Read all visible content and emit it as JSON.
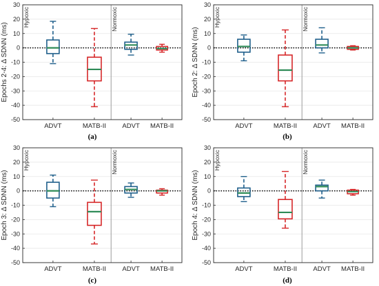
{
  "colors": {
    "advt": "#1f5f8b",
    "matb": "#d62728",
    "median": "#2e8b57",
    "axis": "#262626",
    "grid": "#e6e6e6",
    "divider": "#9a9a9a"
  },
  "ylim": [
    -50,
    30
  ],
  "yticks": [
    30,
    20,
    10,
    0,
    -10,
    -20,
    -30,
    -40,
    -50
  ],
  "chart_data": [
    {
      "type": "box",
      "caption": "(a)",
      "ylabel": "Epochs 2-4: Δ SDNN (ms)",
      "categories": [
        "ADVT",
        "MATB-II",
        "ADVT",
        "MATB-II"
      ],
      "conditions": [
        "Hypoxic",
        "Normoxic"
      ],
      "ylim": [
        -50,
        30
      ],
      "grid": true,
      "boxes": [
        {
          "condition": "Hypoxic",
          "label": "ADVT",
          "q1": -4,
          "median": 0,
          "q3": 5.5,
          "whisker_low": -11,
          "whisker_high": 18.5
        },
        {
          "condition": "Hypoxic",
          "label": "MATB-II",
          "q1": -23,
          "median": -15,
          "q3": -6.5,
          "whisker_low": -41,
          "whisker_high": 13.5
        },
        {
          "condition": "Normoxic",
          "label": "ADVT",
          "q1": -1,
          "median": 2,
          "q3": 4,
          "whisker_low": -5,
          "whisker_high": 9.5
        },
        {
          "condition": "Normoxic",
          "label": "MATB-II",
          "q1": -1.5,
          "median": -0.5,
          "q3": 1,
          "whisker_low": -3,
          "whisker_high": 2.5
        }
      ]
    },
    {
      "type": "box",
      "caption": "(b)",
      "ylabel": "Epoch 2: Δ SDNN (ms)",
      "categories": [
        "ADVT",
        "MATB-II",
        "ADVT",
        "MATB-II"
      ],
      "conditions": [
        "Hypoxic",
        "Normoxic"
      ],
      "ylim": [
        -50,
        30
      ],
      "grid": true,
      "boxes": [
        {
          "condition": "Hypoxic",
          "label": "ADVT",
          "q1": -3,
          "median": 1,
          "q3": 6,
          "whisker_low": -9,
          "whisker_high": 9
        },
        {
          "condition": "Hypoxic",
          "label": "MATB-II",
          "q1": -23,
          "median": -15.5,
          "q3": -5,
          "whisker_low": -41,
          "whisker_high": 12.5
        },
        {
          "condition": "Normoxic",
          "label": "ADVT",
          "q1": 0,
          "median": 2,
          "q3": 6,
          "whisker_low": -3.5,
          "whisker_high": 14
        },
        {
          "condition": "Normoxic",
          "label": "MATB-II",
          "q1": -1,
          "median": 0,
          "q3": 1,
          "whisker_low": -1.5,
          "whisker_high": 1.5
        }
      ]
    },
    {
      "type": "box",
      "caption": "(c)",
      "ylabel": "Epoch 3: Δ SDNN (ms)",
      "categories": [
        "ADVT",
        "MATB-II",
        "ADVT",
        "MATB-II"
      ],
      "conditions": [
        "Hypoxic",
        "Normoxic"
      ],
      "ylim": [
        -50,
        30
      ],
      "grid": true,
      "boxes": [
        {
          "condition": "Hypoxic",
          "label": "ADVT",
          "q1": -5,
          "median": 0,
          "q3": 6,
          "whisker_low": -11,
          "whisker_high": 11
        },
        {
          "condition": "Hypoxic",
          "label": "MATB-II",
          "q1": -24,
          "median": -14.5,
          "q3": -8,
          "whisker_low": -37,
          "whisker_high": 7.5
        },
        {
          "condition": "Normoxic",
          "label": "ADVT",
          "q1": -1.5,
          "median": 1,
          "q3": 3,
          "whisker_low": -4.5,
          "whisker_high": 5.5
        },
        {
          "condition": "Normoxic",
          "label": "MATB-II",
          "q1": -1.5,
          "median": 0,
          "q3": 0.5,
          "whisker_low": -3,
          "whisker_high": 1.5
        }
      ]
    },
    {
      "type": "box",
      "caption": "(d)",
      "ylabel": "Epoch 4: Δ SDNN (ms)",
      "categories": [
        "ADVT",
        "MATB-II",
        "ADVT",
        "MATB-II"
      ],
      "conditions": [
        "Hypoxic",
        "Normoxic"
      ],
      "ylim": [
        -50,
        30
      ],
      "grid": true,
      "boxes": [
        {
          "condition": "Hypoxic",
          "label": "ADVT",
          "q1": -4,
          "median": -1.5,
          "q3": 2,
          "whisker_low": -7.5,
          "whisker_high": 10
        },
        {
          "condition": "Hypoxic",
          "label": "MATB-II",
          "q1": -19.5,
          "median": -15,
          "q3": -6,
          "whisker_low": -26,
          "whisker_high": 13.5
        },
        {
          "condition": "Normoxic",
          "label": "ADVT",
          "q1": 0,
          "median": 3,
          "q3": 4,
          "whisker_low": -5,
          "whisker_high": 7.5
        },
        {
          "condition": "Normoxic",
          "label": "MATB-II",
          "q1": -2,
          "median": -0.5,
          "q3": 0.5,
          "whisker_low": -3,
          "whisker_high": 1
        }
      ]
    }
  ]
}
